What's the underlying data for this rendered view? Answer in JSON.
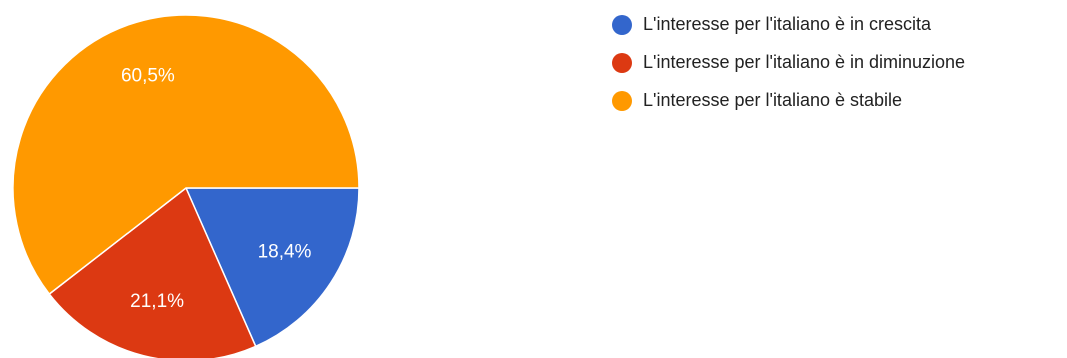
{
  "chart_data": {
    "type": "pie",
    "title": "",
    "legend_position": "top-right",
    "start_angle_deg": 90,
    "direction": "clockwise",
    "slices": [
      {
        "label": "L'interesse per l'italiano è in crescita",
        "value": 18.4,
        "value_label": "18,4%",
        "color": "#3366cc"
      },
      {
        "label": "L'interesse per l'italiano è in diminuzione",
        "value": 21.1,
        "value_label": "21,1%",
        "color": "#dc3912"
      },
      {
        "label": "L'interesse per l'italiano è stabile",
        "value": 60.5,
        "value_label": "60,5%",
        "color": "#ff9900"
      }
    ]
  }
}
